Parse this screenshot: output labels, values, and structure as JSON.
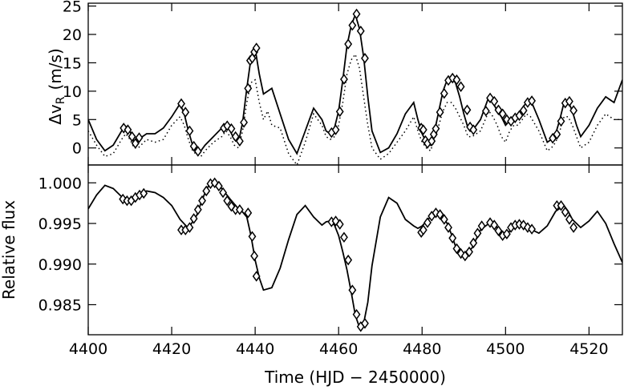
{
  "chart_data": [
    {
      "type": "line",
      "panel": "top",
      "ylabel_main": "Δv",
      "ylabel_sub": "R",
      "ylabel_unit": "(m/s)",
      "xlim": [
        4400,
        4528
      ],
      "ylim": [
        -3,
        25.5
      ],
      "yticks": [
        0,
        5,
        10,
        15,
        20,
        25
      ],
      "ytick_labels": [
        "0",
        "5",
        "10",
        "15",
        "20",
        "25"
      ],
      "series": [
        {
          "style": "solid",
          "x": [
            4400,
            4402,
            4404,
            4406,
            4408,
            4409,
            4410,
            4411,
            4412,
            4414,
            4416,
            4418,
            4420,
            4422,
            4423,
            4424,
            4425,
            4426,
            4427,
            4428,
            4430,
            4432,
            4433,
            4434,
            4435,
            4436,
            4437,
            4438,
            4439,
            4440,
            4441,
            4442,
            4443,
            4444,
            4446,
            4448,
            4450,
            4452,
            4454,
            4456,
            4457,
            4458,
            4459,
            4460,
            4461,
            4462,
            4463,
            4464,
            4465,
            4466,
            4467,
            4468,
            4470,
            4472,
            4474,
            4476,
            4478,
            4479,
            4480,
            4481,
            4482,
            4483,
            4484,
            4485,
            4486,
            4487,
            4488,
            4489,
            4490,
            4491,
            4492,
            4494,
            4496,
            4497,
            4498,
            4499,
            4500,
            4501,
            4502,
            4503,
            4504,
            4505,
            4506,
            4508,
            4510,
            4511,
            4512,
            4513,
            4514,
            4515,
            4516,
            4517,
            4518,
            4520,
            4522,
            4524,
            4526,
            4528
          ],
          "y": [
            5,
            1.5,
            -0.5,
            0.5,
            3,
            3.8,
            3,
            1,
            1.5,
            2.5,
            2.5,
            3.5,
            5.5,
            7.8,
            6,
            3,
            0.5,
            -0.8,
            -0.5,
            0.5,
            2,
            3.5,
            4,
            3,
            1.5,
            1,
            4.5,
            10.5,
            15.8,
            17.5,
            13,
            9.5,
            10,
            10.5,
            6,
            1.5,
            -1,
            3,
            7,
            5,
            3,
            2.5,
            3.5,
            6.5,
            12,
            18,
            21.5,
            23.5,
            21,
            16,
            9,
            3,
            -0.8,
            0,
            2.5,
            6,
            8,
            5,
            2.5,
            1,
            0.5,
            3,
            6.5,
            10,
            12,
            12.2,
            11.5,
            9,
            6,
            3.5,
            3,
            5,
            9,
            8,
            6.5,
            5.5,
            4,
            4.8,
            5.5,
            6,
            7,
            8,
            8.5,
            5,
            1,
            1.5,
            2.5,
            5,
            8,
            8.2,
            6.5,
            4,
            2,
            4,
            7,
            9,
            8,
            12
          ]
        },
        {
          "style": "dotted",
          "x": [
            4400,
            4402,
            4404,
            4406,
            4408,
            4409,
            4410,
            4411,
            4412,
            4414,
            4416,
            4418,
            4420,
            4422,
            4423,
            4424,
            4425,
            4426,
            4427,
            4428,
            4430,
            4432,
            4433,
            4434,
            4435,
            4436,
            4437,
            4438,
            4439,
            4440,
            4441,
            4442,
            4443,
            4444,
            4446,
            4448,
            4450,
            4452,
            4454,
            4456,
            4457,
            4458,
            4459,
            4460,
            4461,
            4462,
            4463,
            4464,
            4465,
            4466,
            4467,
            4468,
            4470,
            4472,
            4474,
            4476,
            4478,
            4479,
            4480,
            4481,
            4482,
            4483,
            4484,
            4485,
            4486,
            4487,
            4488,
            4489,
            4490,
            4491,
            4492,
            4494,
            4496,
            4497,
            4498,
            4499,
            4500,
            4501,
            4502,
            4503,
            4504,
            4505,
            4506,
            4508,
            4510,
            4511,
            4512,
            4513,
            4514,
            4515,
            4516,
            4517,
            4518,
            4520,
            4522,
            4524,
            4526,
            4528
          ],
          "y": [
            3,
            0.5,
            -1.5,
            -1,
            1.5,
            2.5,
            1.5,
            0,
            0,
            1.5,
            1,
            1.5,
            4,
            5.5,
            4,
            1.5,
            -0.5,
            -1.2,
            -1.5,
            -0.5,
            1,
            2,
            3,
            2,
            0.5,
            0,
            3,
            8,
            11.5,
            12,
            8,
            5,
            6.5,
            4,
            3.5,
            -1,
            -3,
            1,
            6,
            4,
            2,
            1.5,
            2,
            4,
            8,
            13,
            15.5,
            16.5,
            14,
            9,
            4,
            0,
            -2,
            -1,
            1,
            3,
            5.5,
            3,
            1,
            0,
            -0.5,
            1.5,
            4,
            6.5,
            8,
            8,
            7,
            5.5,
            4,
            2,
            2,
            3,
            6.5,
            5.5,
            4,
            2,
            1,
            3,
            4,
            4,
            5,
            6,
            5.5,
            3,
            -0.5,
            0,
            1,
            3,
            5.5,
            5.5,
            4,
            2,
            0,
            1,
            4,
            6,
            5,
            5
          ]
        }
      ],
      "markers": {
        "x": [
          4408.5,
          4409.5,
          4410.5,
          4411.3,
          4412.2,
          4422.3,
          4423.3,
          4424.3,
          4425.3,
          4426.3,
          4432.5,
          4433.3,
          4434.3,
          4435.3,
          4436.3,
          4437.3,
          4438.3,
          4438.8,
          4439.3,
          4439.8,
          4440.3,
          4458.3,
          4459.3,
          4460.3,
          4461.3,
          4462.3,
          4463.3,
          4464.3,
          4465.3,
          4466.3,
          4479.8,
          4480.3,
          4480.8,
          4481.3,
          4482.3,
          4482.8,
          4483.3,
          4484.3,
          4485.3,
          4486.3,
          4487.3,
          4488.3,
          4489.3,
          4490.8,
          4491.5,
          4492.3,
          4495.3,
          4496.3,
          4497.3,
          4498.3,
          4499.3,
          4500.3,
          4501.3,
          4502.3,
          4503.3,
          4504.3,
          4505.3,
          4506.3,
          4511.3,
          4512.3,
          4513.3,
          4514.3,
          4515.3,
          4516.3
        ],
        "y": [
          3.5,
          3.2,
          2,
          0.8,
          1.8,
          7.8,
          6.3,
          3,
          0.3,
          -0.6,
          3.5,
          3.9,
          3.4,
          2,
          1.2,
          4.5,
          10.5,
          15.4,
          15.8,
          16.9,
          17.6,
          2.7,
          3.2,
          6.4,
          12.1,
          18.3,
          21.6,
          23.6,
          20.6,
          15.8,
          3.5,
          3.2,
          1.3,
          0.8,
          1.2,
          2.4,
          3.4,
          6.3,
          9.6,
          11.9,
          12.3,
          12,
          10.8,
          6.7,
          3.7,
          3.2,
          6.5,
          8.8,
          8.2,
          6.7,
          6,
          5,
          4.7,
          5.3,
          5.7,
          6.6,
          8,
          8.3,
          1.7,
          2.4,
          4.7,
          7.9,
          8.2,
          6.6
        ]
      }
    },
    {
      "type": "line",
      "panel": "bottom",
      "xlabel": "Time (HJD − 2450000)",
      "ylabel": "Relative flux",
      "xlim": [
        4400,
        4528
      ],
      "ylim": [
        0.9813,
        1.0022
      ],
      "yticks": [
        0.985,
        0.99,
        0.995,
        1.0
      ],
      "ytick_labels": [
        "0.985",
        "0.990",
        "0.995",
        "1.000"
      ],
      "xticks": [
        4400,
        4420,
        4440,
        4460,
        4480,
        4500,
        4520
      ],
      "xtick_labels": [
        "4400",
        "4420",
        "4440",
        "4460",
        "4480",
        "4500",
        "4520"
      ],
      "series": [
        {
          "style": "solid",
          "x": [
            4400,
            4402,
            4404,
            4406,
            4408,
            4410,
            4412,
            4414,
            4416,
            4418,
            4420,
            4422,
            4424,
            4426,
            4427,
            4428,
            4429,
            4430,
            4432,
            4434,
            4436,
            4437,
            4438,
            4439,
            4440,
            4441,
            4442,
            4444,
            4446,
            4448,
            4450,
            4452,
            4454,
            4456,
            4457,
            4458,
            4459,
            4460,
            4461,
            4462,
            4463,
            4464,
            4465,
            4466,
            4467,
            4468,
            4470,
            4472,
            4474,
            4476,
            4478,
            4479,
            4480,
            4482,
            4484,
            4485,
            4486,
            4487,
            4488,
            4489,
            4490,
            4492,
            4494,
            4496,
            4498,
            4500,
            4502,
            4504,
            4506,
            4508,
            4510,
            4512,
            4514,
            4515,
            4516,
            4518,
            4520,
            4522,
            4524,
            4526,
            4528
          ],
          "y": [
            0.9968,
            0.9985,
            0.9997,
            0.9993,
            0.9983,
            0.998,
            0.9983,
            0.999,
            0.9988,
            0.9982,
            0.9972,
            0.9955,
            0.9944,
            0.996,
            0.9975,
            0.9988,
            0.9998,
            1.0,
            0.9993,
            0.998,
            0.9968,
            0.9964,
            0.9958,
            0.9935,
            0.9905,
            0.9883,
            0.9868,
            0.9871,
            0.9895,
            0.993,
            0.9961,
            0.9972,
            0.9958,
            0.9948,
            0.9952,
            0.9953,
            0.9948,
            0.9935,
            0.9915,
            0.9893,
            0.9866,
            0.9837,
            0.9822,
            0.9827,
            0.9853,
            0.9898,
            0.9958,
            0.9982,
            0.9975,
            0.9955,
            0.9947,
            0.9944,
            0.9947,
            0.9958,
            0.9962,
            0.9958,
            0.995,
            0.9937,
            0.9922,
            0.9913,
            0.991,
            0.992,
            0.9942,
            0.995,
            0.9945,
            0.9935,
            0.9946,
            0.9947,
            0.9943,
            0.9938,
            0.9947,
            0.9965,
            0.9972,
            0.9965,
            0.9955,
            0.9945,
            0.9953,
            0.9965,
            0.995,
            0.9925,
            0.9902
          ]
        }
      ],
      "markers": {
        "x": [
          4408.3,
          4409.3,
          4410.3,
          4411.3,
          4412.3,
          4413.3,
          4422.3,
          4423.3,
          4424.3,
          4425.3,
          4426.3,
          4427.3,
          4428.3,
          4429.3,
          4430.3,
          4431.3,
          4432.3,
          4433.3,
          4434.3,
          4435.3,
          4436.3,
          4438.3,
          4439.3,
          4439.8,
          4440.3,
          4458.3,
          4459.3,
          4460.3,
          4461.3,
          4462.3,
          4463.3,
          4464.3,
          4465.3,
          4466.3,
          4479.8,
          4480.3,
          4481.3,
          4482.3,
          4483.3,
          4484.3,
          4485.3,
          4486.3,
          4487.3,
          4488.3,
          4489.3,
          4490.3,
          4491.3,
          4492.3,
          4493.3,
          4494.3,
          4496.3,
          4497.3,
          4498.3,
          4499.3,
          4500.3,
          4501.3,
          4502.3,
          4503.3,
          4504.3,
          4505.3,
          4506.3,
          4512.3,
          4513.3,
          4514.3,
          4515.3,
          4516.3
        ],
        "y": [
          0.998,
          0.9978,
          0.9978,
          0.9982,
          0.9985,
          0.9987,
          0.9942,
          0.9942,
          0.9945,
          0.9956,
          0.9967,
          0.9978,
          0.999,
          0.9999,
          1.0,
          0.9996,
          0.9988,
          0.9978,
          0.9971,
          0.9967,
          0.9967,
          0.9963,
          0.9934,
          0.991,
          0.9885,
          0.9952,
          0.9953,
          0.9949,
          0.9933,
          0.9905,
          0.9868,
          0.9838,
          0.9823,
          0.9827,
          0.9939,
          0.9942,
          0.9951,
          0.9959,
          0.9963,
          0.9961,
          0.9955,
          0.9945,
          0.9932,
          0.9919,
          0.9913,
          0.991,
          0.9915,
          0.9926,
          0.9938,
          0.9947,
          0.9951,
          0.9948,
          0.9941,
          0.9935,
          0.9937,
          0.9945,
          0.9948,
          0.9949,
          0.9948,
          0.9945,
          0.9943,
          0.9972,
          0.9972,
          0.9964,
          0.9955,
          0.9945
        ]
      }
    }
  ]
}
